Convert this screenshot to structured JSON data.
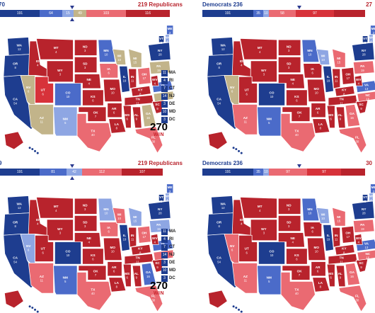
{
  "colors": {
    "safe_rep": "#b8232c",
    "likely_rep": "#d7323a",
    "lean_rep": "#ea6a72",
    "tossup": "#c2b48a",
    "lean_dem": "#8ea6e3",
    "likely_dem": "#4b6bc9",
    "safe_dem": "#1e3d8f",
    "marker": "#2b3a8f"
  },
  "panels": [
    {
      "left_label": "70",
      "right_label": "219 Republicans",
      "segments": [
        {
          "label": "191",
          "kind": "safe_dem",
          "w": 56
        },
        {
          "label": "64",
          "kind": "likely_dem",
          "w": 32
        },
        {
          "label": "15",
          "kind": "lean_dem",
          "w": 16
        },
        {
          "label": "49",
          "kind": "tossup",
          "w": 18
        },
        {
          "label": "103",
          "kind": "lean_rep",
          "w": 56
        },
        {
          "label": "116",
          "kind": "safe_rep",
          "w": 62
        }
      ],
      "has_small_list": true,
      "logo": {
        "num": "270",
        "win": "WIN"
      }
    },
    {
      "left_label": "Democrats 236",
      "right_label": "27",
      "segments": [
        {
          "label": "191",
          "kind": "safe_dem",
          "w": 72
        },
        {
          "label": "35",
          "kind": "likely_dem",
          "w": 14
        },
        {
          "label": "10",
          "kind": "lean_dem",
          "w": 8
        },
        {
          "label": "58",
          "kind": "lean_rep",
          "w": 38
        },
        {
          "label": "97",
          "kind": "likely_rep",
          "w": 54
        },
        {
          "label": "",
          "kind": "safe_rep",
          "w": 44
        }
      ],
      "has_small_list": false,
      "logo": null
    },
    {
      "left_label": "9",
      "right_label": "219 Republicans",
      "segments": [
        {
          "label": "191",
          "kind": "safe_dem",
          "w": 56
        },
        {
          "label": "81",
          "kind": "likely_dem",
          "w": 38
        },
        {
          "label": "42",
          "kind": "lean_dem",
          "w": 22
        },
        {
          "label": "112",
          "kind": "lean_rep",
          "w": 56
        },
        {
          "label": "107",
          "kind": "safe_rep",
          "w": 58
        }
      ],
      "has_small_list": true,
      "logo": {
        "num": "270",
        "win": "WIN"
      }
    },
    {
      "left_label": "Democrats 236",
      "right_label": "30",
      "segments": [
        {
          "label": "191",
          "kind": "safe_dem",
          "w": 72
        },
        {
          "label": "35",
          "kind": "likely_dem",
          "w": 14
        },
        {
          "label": "10",
          "kind": "lean_dem",
          "w": 8
        },
        {
          "label": "97",
          "kind": "lean_rep",
          "w": 54
        },
        {
          "label": "97",
          "kind": "likely_rep",
          "w": 48
        },
        {
          "label": "",
          "kind": "safe_rep",
          "w": 34
        }
      ],
      "has_small_list": false,
      "logo": null
    }
  ],
  "small_states": [
    {
      "abbr": "MA",
      "ev": "11"
    },
    {
      "abbr": "RI",
      "ev": "4"
    },
    {
      "abbr": "CT",
      "ev": "7"
    },
    {
      "abbr": "NJ",
      "ev": "14"
    },
    {
      "abbr": "DE",
      "ev": "3"
    },
    {
      "abbr": "MD",
      "ev": "10"
    },
    {
      "abbr": "DC",
      "ev": "3"
    }
  ],
  "state_labels_top": [
    {
      "a": "WA",
      "n": "12"
    },
    {
      "a": "OR",
      "n": "8"
    },
    {
      "a": "CA",
      "n": "54"
    },
    {
      "a": "MT",
      "n": "4"
    },
    {
      "a": "ND",
      "n": "3"
    },
    {
      "a": "SD",
      "n": "3"
    },
    {
      "a": "WY",
      "n": "3"
    },
    {
      "a": "NE",
      "n": "4"
    },
    {
      "a": "CO",
      "n": "10"
    },
    {
      "a": "UT",
      "n": "6"
    },
    {
      "a": "NM",
      "n": "5"
    },
    {
      "a": "AZ",
      "n": "11"
    },
    {
      "a": "TX",
      "n": "40"
    },
    {
      "a": "OK",
      "n": "7"
    },
    {
      "a": "KS",
      "n": "6"
    },
    {
      "a": "MN",
      "n": "10"
    },
    {
      "a": "IA",
      "n": "6"
    },
    {
      "a": "MO",
      "n": "10"
    },
    {
      "a": "AR",
      "n": "6"
    },
    {
      "a": "LA",
      "n": "8"
    },
    {
      "a": "WI",
      "n": "10"
    },
    {
      "a": "IL",
      "n": "19"
    },
    {
      "a": "MS",
      "n": "6"
    },
    {
      "a": "MI",
      "n": "15"
    },
    {
      "a": "IN",
      "n": "11"
    },
    {
      "a": "KY",
      "n": "8"
    },
    {
      "a": "TN",
      "n": "11"
    },
    {
      "a": "AL",
      "n": "9"
    },
    {
      "a": "OH",
      "n": "17"
    },
    {
      "a": "GA",
      "n": "16"
    },
    {
      "a": "FL",
      "n": "30"
    },
    {
      "a": "SC",
      "n": "9"
    },
    {
      "a": "NC",
      "n": "16"
    },
    {
      "a": "VA",
      "n": "13"
    },
    {
      "a": "WV",
      "n": "4"
    },
    {
      "a": "PA",
      "n": "19"
    },
    {
      "a": "NY",
      "n": "28"
    },
    {
      "a": "VT",
      "n": "3"
    },
    {
      "a": "NH",
      "n": "4"
    },
    {
      "a": "ME",
      "n": "2"
    },
    {
      "a": "NV",
      "n": "6"
    },
    {
      "a": "ID",
      "n": "4"
    },
    {
      "a": "AK",
      "n": "3"
    },
    {
      "a": "HI",
      "n": "4"
    }
  ]
}
